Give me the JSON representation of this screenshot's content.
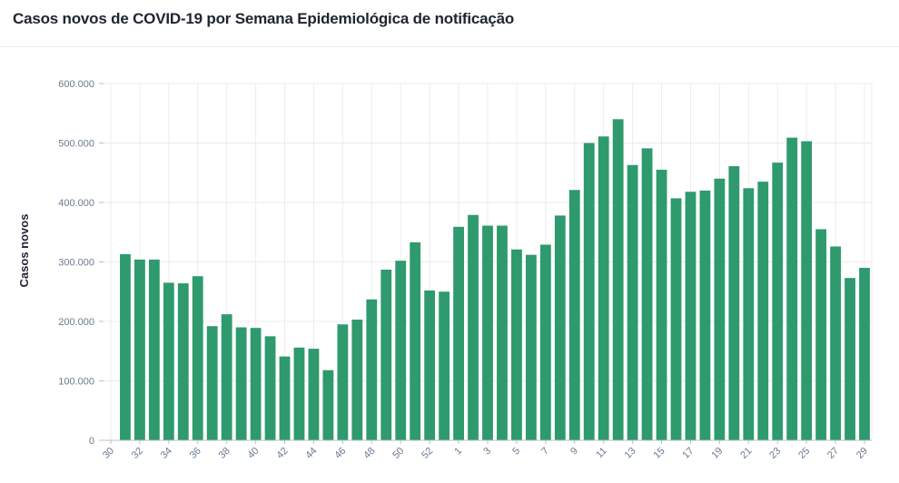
{
  "header": {
    "title": "Casos novos de COVID-19 por Semana Epidemiológica de notificação"
  },
  "colors": {
    "bar": "#2e9a6e",
    "grid": "#ececec",
    "tick_text": "#6b7a90",
    "axis_title": "#1f2430"
  },
  "chart_data": {
    "type": "bar",
    "title": "Casos novos de COVID-19 por Semana Epidemiológica de notificação",
    "xlabel": "",
    "ylabel": "Casos novos",
    "ylim": [
      0,
      600000
    ],
    "yticks": [
      0,
      100000,
      200000,
      300000,
      400000,
      500000,
      600000
    ],
    "ytick_labels": [
      "0",
      "100.000",
      "200.000",
      "300.000",
      "400.000",
      "500.000",
      "600.000"
    ],
    "grid": true,
    "categories": [
      "30",
      "31",
      "32",
      "33",
      "34",
      "35",
      "36",
      "37",
      "38",
      "39",
      "40",
      "41",
      "42",
      "43",
      "44",
      "45",
      "46",
      "47",
      "48",
      "49",
      "50",
      "51",
      "52",
      "53",
      "1",
      "2",
      "3",
      "4",
      "5",
      "6",
      "7",
      "8",
      "9",
      "10",
      "11",
      "12",
      "13",
      "14",
      "15",
      "16",
      "17",
      "18",
      "19",
      "20",
      "21",
      "22",
      "23",
      "24",
      "25",
      "26",
      "27",
      "28",
      "29"
    ],
    "xtick_labels_shown": [
      "30",
      "32",
      "34",
      "36",
      "38",
      "40",
      "42",
      "44",
      "46",
      "48",
      "50",
      "52",
      "1",
      "3",
      "5",
      "7",
      "9",
      "11",
      "13",
      "15",
      "17",
      "19",
      "21",
      "23",
      "25",
      "27",
      "29"
    ],
    "values": [
      0,
      313000,
      304000,
      304000,
      265000,
      264000,
      276000,
      192000,
      212000,
      190000,
      189000,
      175000,
      141000,
      156000,
      154000,
      118000,
      195000,
      203000,
      237000,
      287000,
      302000,
      333000,
      252000,
      250000,
      359000,
      379000,
      361000,
      361000,
      321000,
      312000,
      329000,
      378000,
      421000,
      500000,
      511000,
      540000,
      463000,
      491000,
      455000,
      407000,
      418000,
      420000,
      440000,
      461000,
      424000,
      435000,
      467000,
      509000,
      503000,
      355000,
      326000,
      273000,
      290000
    ]
  }
}
